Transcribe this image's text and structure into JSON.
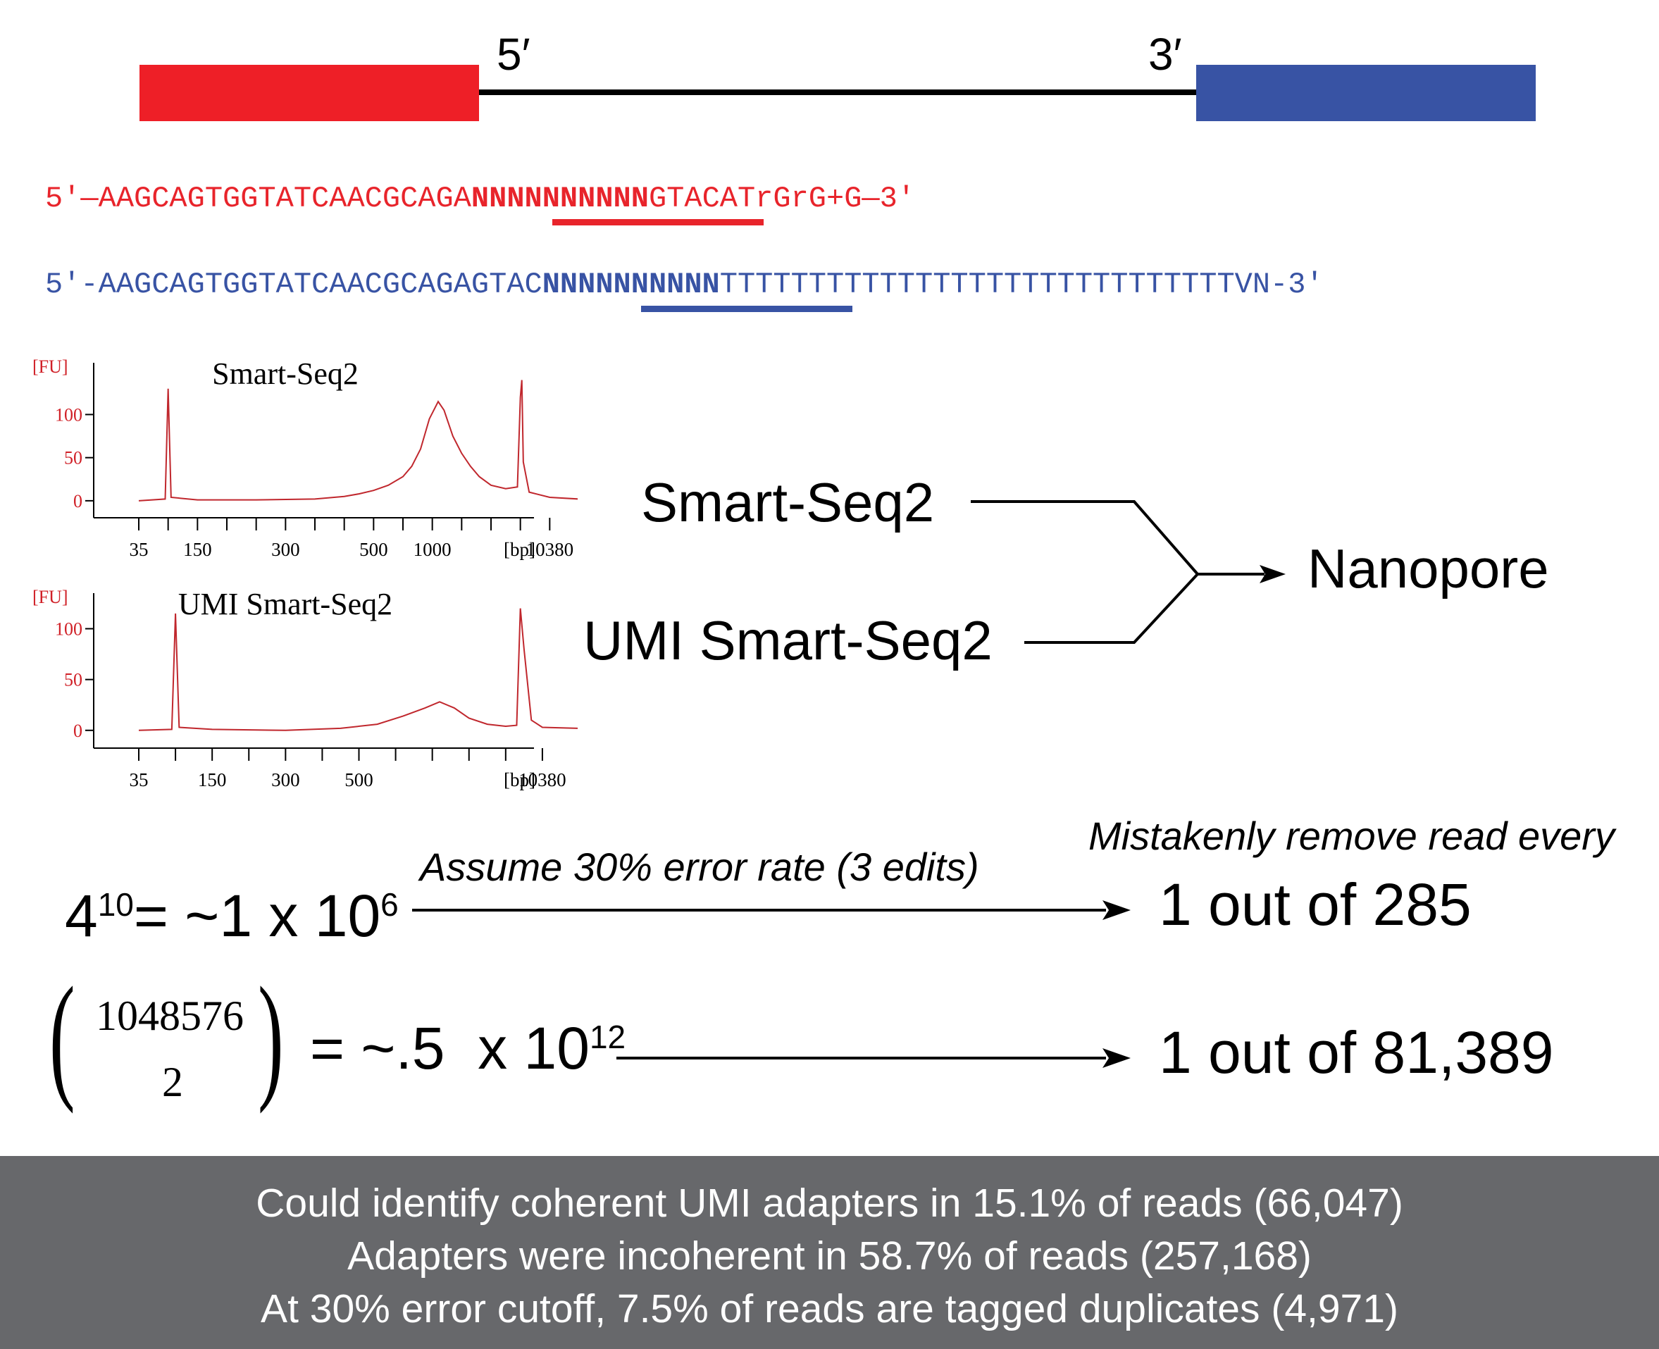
{
  "construct": {
    "left_label": "5′",
    "right_label": "3′",
    "colors": {
      "left_block": "#ee1f27",
      "right_block": "#3853a4",
      "line": "#000000"
    }
  },
  "sequences": {
    "red": {
      "prefix": "5'—AAGCAGTGGTATCAACGCAGA",
      "umi": "NNNNNNNNNN",
      "suffix": "GTACATrGrG+G—3'",
      "color": "#e8242b"
    },
    "blue": {
      "prefix": "5'-AAGCAGTGGTATCAACGCAGAGTAC",
      "umi": "NNNNNNNNNN",
      "suffix": "TTTTTTTTTTTTTTTTTTTTTTTTTTTTTVN-3'",
      "color": "#3853a4"
    }
  },
  "chart_data": [
    {
      "type": "line",
      "title": "Smart-Seq2",
      "ylabel": "[FU]",
      "xlabel": "[bp]",
      "yticks": [
        0,
        50,
        100
      ],
      "ylim": [
        -5,
        160
      ],
      "x_tick_labels": [
        "35",
        "150",
        "300",
        "500",
        "1000",
        "10380"
      ],
      "x_tick_label_index": [
        0,
        2,
        5,
        8,
        10,
        14
      ],
      "x_tick_count": 15,
      "series": [
        {
          "color": "#c0272d",
          "points": [
            [
              0,
              0
            ],
            [
              0.9,
              2
            ],
            [
              1.0,
              130
            ],
            [
              1.1,
              4
            ],
            [
              2,
              1
            ],
            [
              4,
              1
            ],
            [
              6,
              2
            ],
            [
              7,
              5
            ],
            [
              7.5,
              8
            ],
            [
              8,
              12
            ],
            [
              8.5,
              18
            ],
            [
              9,
              28
            ],
            [
              9.3,
              40
            ],
            [
              9.6,
              60
            ],
            [
              9.9,
              95
            ],
            [
              10.2,
              115
            ],
            [
              10.4,
              105
            ],
            [
              10.7,
              75
            ],
            [
              11,
              55
            ],
            [
              11.3,
              40
            ],
            [
              11.6,
              28
            ],
            [
              12,
              18
            ],
            [
              12.5,
              14
            ],
            [
              12.9,
              16
            ],
            [
              13.0,
              120
            ],
            [
              13.05,
              140
            ],
            [
              13.1,
              45
            ],
            [
              13.3,
              10
            ],
            [
              14,
              4
            ],
            [
              15,
              2
            ]
          ]
        }
      ]
    },
    {
      "type": "line",
      "title": "UMI Smart-Seq2",
      "ylabel": "[FU]",
      "xlabel": "[bp]",
      "yticks": [
        0,
        50,
        100
      ],
      "ylim": [
        -5,
        135
      ],
      "x_tick_labels": [
        "35",
        "150",
        "300",
        "500",
        "10380"
      ],
      "x_tick_label_index": [
        0,
        2,
        4,
        6,
        11
      ],
      "x_tick_count": 12,
      "series": [
        {
          "color": "#c0272d",
          "points": [
            [
              0,
              0
            ],
            [
              0.9,
              1
            ],
            [
              1.0,
              115
            ],
            [
              1.1,
              3
            ],
            [
              2,
              1
            ],
            [
              4,
              0
            ],
            [
              5.5,
              2
            ],
            [
              6.5,
              6
            ],
            [
              7.2,
              14
            ],
            [
              7.8,
              22
            ],
            [
              8.2,
              28
            ],
            [
              8.6,
              22
            ],
            [
              9,
              12
            ],
            [
              9.5,
              6
            ],
            [
              10,
              4
            ],
            [
              10.3,
              5
            ],
            [
              10.4,
              120
            ],
            [
              10.5,
              80
            ],
            [
              10.7,
              10
            ],
            [
              11,
              3
            ],
            [
              12,
              2
            ]
          ]
        }
      ]
    }
  ],
  "flow": {
    "input1": "Smart-Seq2",
    "input2": "UMI Smart-Seq2",
    "output": "Nanopore"
  },
  "math": {
    "eq1_base": "4",
    "eq1_exp": "10",
    "eq1_rest": "= ~1 x 10",
    "eq1_rest_exp": "6",
    "assumption": "Assume 30% error rate (3 edits)",
    "header": "Mistakenly remove read every",
    "result1": "1 out of 285",
    "binom_top": "1048576",
    "binom_bottom": "2",
    "eq2_rest": "= ~.5  x 10",
    "eq2_rest_exp": "12",
    "result2": "1 out of 81,389"
  },
  "footer": {
    "line1": "Could identify coherent UMI adapters in 15.1% of reads (66,047)",
    "line2": "Adapters were incoherent in 58.7% of reads (257,168)",
    "line3": "At 30% error cutoff, 7.5% of reads are tagged duplicates (4,971)"
  }
}
